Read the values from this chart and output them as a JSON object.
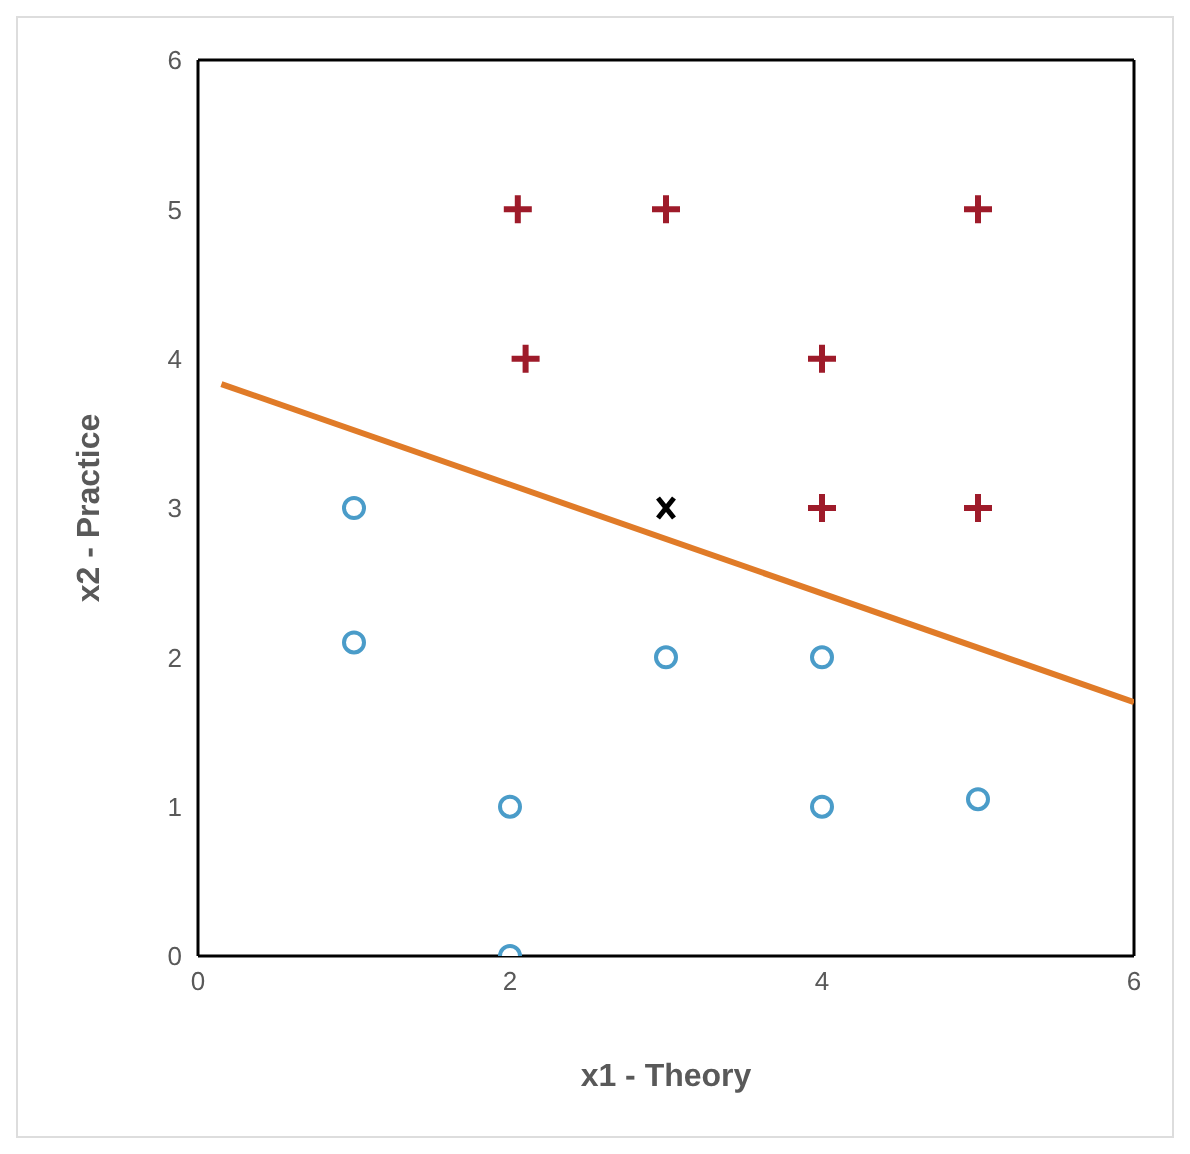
{
  "chart_data": {
    "type": "scatter",
    "xlabel": "x1 - Theory",
    "ylabel": "x2 - Practice",
    "xlim": [
      0,
      6
    ],
    "ylim": [
      0,
      6
    ],
    "xticks": [
      0,
      2,
      4,
      6
    ],
    "yticks": [
      0,
      1,
      2,
      3,
      4,
      5,
      6
    ],
    "legend": false,
    "series": [
      {
        "type": "scatter",
        "marker": "cross",
        "color": "#9e1b2a",
        "x": [
          2.05,
          3,
          5,
          2.1,
          4,
          4,
          5
        ],
        "values": [
          5,
          5,
          5,
          4,
          4,
          3,
          3
        ]
      },
      {
        "type": "scatter",
        "marker": "circle",
        "color": "#4a9cc9",
        "x": [
          1,
          1,
          2,
          2,
          3,
          4,
          4,
          5
        ],
        "values": [
          3,
          2.1,
          1,
          0,
          2,
          2,
          1,
          1.05
        ]
      },
      {
        "type": "scatter",
        "marker": "x",
        "color": "#000000",
        "x": [
          3
        ],
        "values": [
          3
        ]
      },
      {
        "type": "line",
        "marker": "none",
        "color": "#e07b28",
        "x": [
          0.15,
          6
        ],
        "values": [
          3.83,
          1.7
        ]
      }
    ]
  }
}
